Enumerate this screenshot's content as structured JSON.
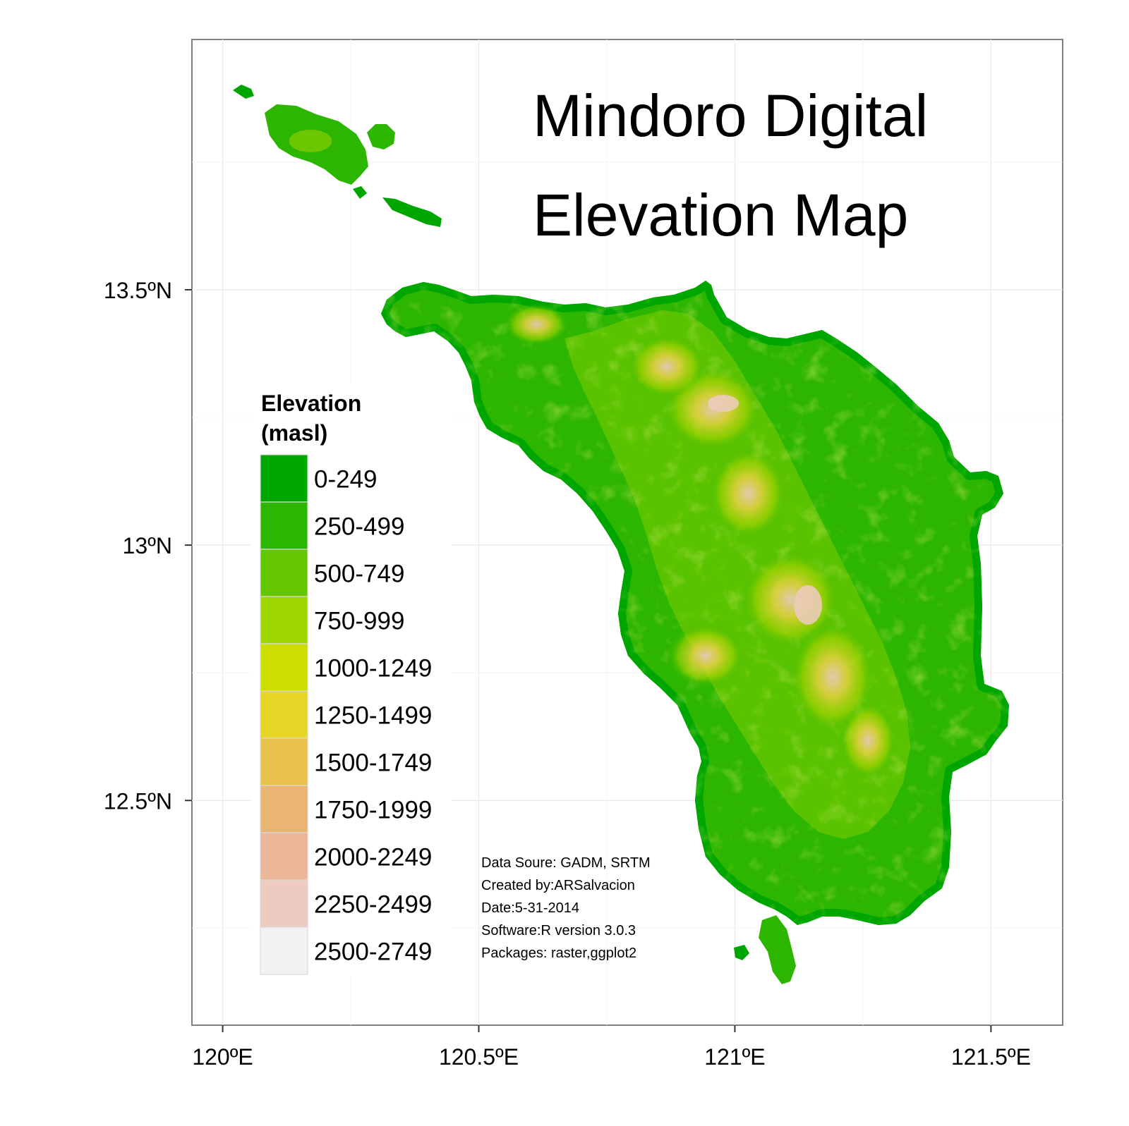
{
  "title": [
    "Mindoro Digital",
    "Elevation Map"
  ],
  "axes": {
    "x_ticks": [
      "120ºE",
      "120.5ºE",
      "121ºE",
      "121.5ºE"
    ],
    "y_ticks": [
      "13.5ºN",
      "13ºN",
      "12.5ºN"
    ]
  },
  "map_data": {
    "type": "raster-elevation",
    "x_range": [
      119.94,
      121.64
    ],
    "y_range": [
      12.06,
      13.99
    ],
    "x_tick_values": [
      120,
      120.5,
      121,
      121.5
    ],
    "y_tick_values": [
      13.5,
      13.0,
      12.5
    ],
    "grid": true,
    "legend_position": "left"
  },
  "legend": {
    "title": [
      "Elevation",
      "(masl)"
    ],
    "items": [
      {
        "label": "0-249",
        "color": "#00A600"
      },
      {
        "label": "250-499",
        "color": "#2DB600"
      },
      {
        "label": "500-749",
        "color": "#63C600"
      },
      {
        "label": "750-999",
        "color": "#A0D600"
      },
      {
        "label": "1000-1249",
        "color": "#CBDE00"
      },
      {
        "label": "1250-1499",
        "color": "#E6D627"
      },
      {
        "label": "1500-1749",
        "color": "#E8C14A"
      },
      {
        "label": "1750-1999",
        "color": "#EAB472"
      },
      {
        "label": "2000-2249",
        "color": "#ECB699"
      },
      {
        "label": "2250-2499",
        "color": "#EDCBC1"
      },
      {
        "label": "2500-2749",
        "color": "#F2F2F2"
      }
    ]
  },
  "credits": [
    "Data Soure: GADM, SRTM",
    "Created by:ARSalvacion",
    "Date:5-31-2014",
    "Software:R version 3.0.3",
    "Packages: raster,ggplot2"
  ]
}
